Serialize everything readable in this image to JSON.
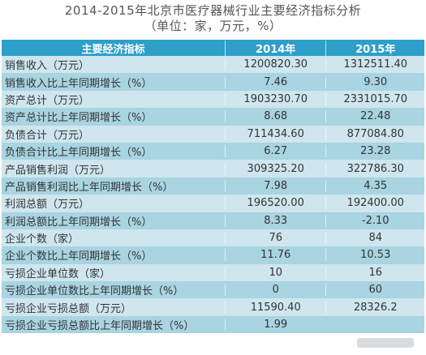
{
  "title": "2014-2015年北京市医疗器械行业主要经济指标分析",
  "subtitle": "（单位：家，万元，%）",
  "columns": [
    "主要经济指标",
    "2014年",
    "2015年"
  ],
  "rows": [
    {
      "label": "销售收入（万元）",
      "y2014": "1200820.30",
      "y2015": "1312511.40"
    },
    {
      "label": "销售收入比上年同期增长（%）",
      "y2014": "7.46",
      "y2015": "9.30"
    },
    {
      "label": "资产总计（万元）",
      "y2014": "1903230.70",
      "y2015": "2331015.70"
    },
    {
      "label": "资产总计比上年同期增长（%）",
      "y2014": "8.68",
      "y2015": "22.48"
    },
    {
      "label": "负债合计（万元）",
      "y2014": "711434.60",
      "y2015": "877084.80"
    },
    {
      "label": "负债合计比上年同期增长（%）",
      "y2014": "6.27",
      "y2015": "23.28"
    },
    {
      "label": "产品销售利润（万元）",
      "y2014": "309325.20",
      "y2015": "322786.30"
    },
    {
      "label": "产品销售利润比上年同期增长（%）",
      "y2014": "7.98",
      "y2015": "4.35"
    },
    {
      "label": "利润总额（万元）",
      "y2014": "196520.00",
      "y2015": "192400.00"
    },
    {
      "label": "利润总额比上年同期增长（%）",
      "y2014": "8.33",
      "y2015": "-2.10"
    },
    {
      "label": "企业个数（家）",
      "y2014": "76",
      "y2015": "84"
    },
    {
      "label": "企业个数比上年同期增长（%）",
      "y2014": "11.76",
      "y2015": "10.53"
    },
    {
      "label": "亏损企业单位数（家）",
      "y2014": "10",
      "y2015": "16"
    },
    {
      "label": "亏损企业单位数比上年同期增长（%）",
      "y2014": "0",
      "y2015": "60"
    },
    {
      "label": "亏损企业亏损总额（万元）",
      "y2014": "11590.40",
      "y2015": "28326.2"
    },
    {
      "label": "亏损企业亏损总额比上年同期增长（%）",
      "y2014": "1.99",
      "y2015": ""
    }
  ]
}
